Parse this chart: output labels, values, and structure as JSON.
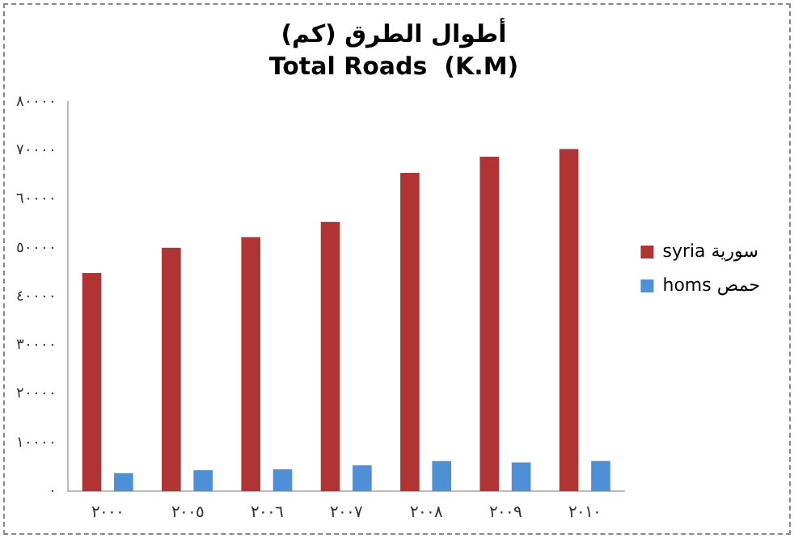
{
  "chart_data": {
    "type": "bar",
    "title": "أطوال الطرق (كم)",
    "subtitle": "Total Roads  (K.M)",
    "categories": [
      "٢٠٠٠",
      "٢٠٠٥",
      "٢٠٠٦",
      "٢٠٠٧",
      "٢٠٠٨",
      "٢٠٠٩",
      "٢٠١٠"
    ],
    "series": [
      {
        "name": "syria سورية",
        "color": "#b03434",
        "values": [
          44800,
          50000,
          52200,
          55300,
          65400,
          68700,
          70300
        ]
      },
      {
        "name": "homs حمص",
        "color": "#4f8fd6",
        "values": [
          3700,
          4300,
          4500,
          5300,
          6200,
          5900,
          6200
        ]
      }
    ],
    "ylim": [
      0,
      80000
    ],
    "yticks": [
      {
        "value": 0,
        "label": "٠"
      },
      {
        "value": 10000,
        "label": "١٠٠٠٠"
      },
      {
        "value": 20000,
        "label": "٢٠٠٠٠"
      },
      {
        "value": 30000,
        "label": "٣٠٠٠٠"
      },
      {
        "value": 40000,
        "label": "٤٠٠٠٠"
      },
      {
        "value": 50000,
        "label": "٥٠٠٠٠"
      },
      {
        "value": 60000,
        "label": "٦٠٠٠٠"
      },
      {
        "value": 70000,
        "label": "٧٠٠٠٠"
      },
      {
        "value": 80000,
        "label": "٨٠٠٠٠"
      }
    ],
    "grid": false,
    "legend": "right"
  }
}
